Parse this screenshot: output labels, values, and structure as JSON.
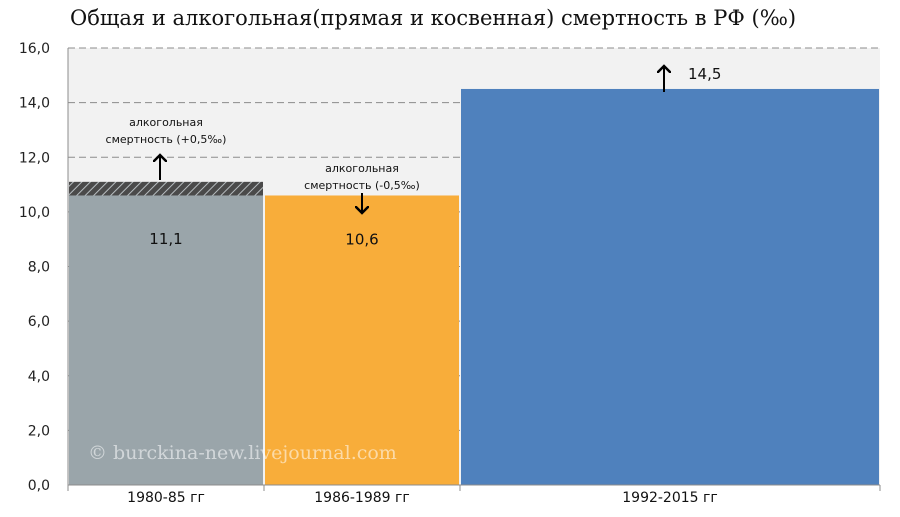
{
  "chart_data": {
    "type": "bar",
    "title": "Общая и алкогольная(прямая и косвенная) смертность в РФ (‰)",
    "categories": [
      "1980-85 гг",
      "1986-1989 гг",
      "1992-2015 гг"
    ],
    "values": [
      11.1,
      10.6,
      14.5
    ],
    "value_labels": [
      "11,1",
      "10,6",
      "14,5"
    ],
    "ylim": [
      0,
      16
    ],
    "yticks": [
      "0,0",
      "2,0",
      "4,0",
      "6,0",
      "8,0",
      "10,0",
      "12,0",
      "14,0",
      "16,0"
    ],
    "grid": true,
    "colors": [
      "#9aa5aa",
      "#f8ad3a",
      "#4f81bd"
    ],
    "annotations": [
      {
        "category": "1980-85 гг",
        "line1": "алкогольная",
        "line2": "смертность (+0,5‰)",
        "arrow": "up",
        "hatched_value": 0.5
      },
      {
        "category": "1986-1989 гг",
        "line1": "алкогольная",
        "line2": "смертность (-0,5‰)",
        "arrow": "down"
      },
      {
        "category": "1992-2015 гг",
        "arrow": "up"
      }
    ],
    "watermark": "© burckina-new.livejournal.com"
  }
}
